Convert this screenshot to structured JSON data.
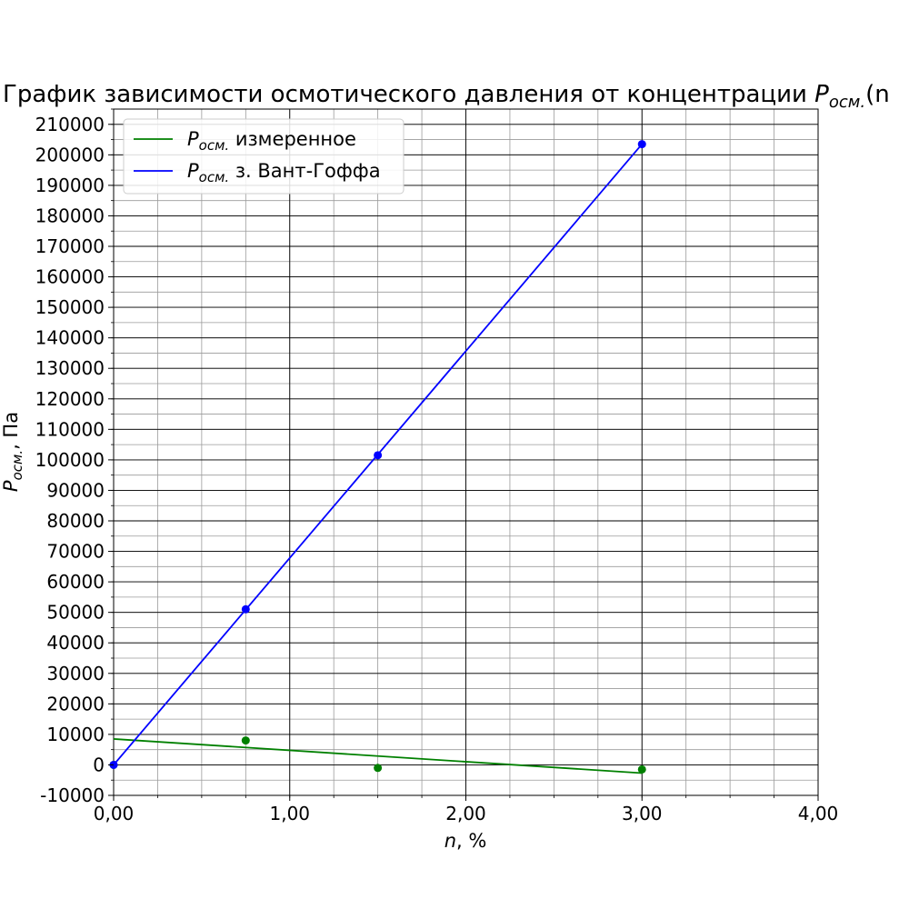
{
  "chart_data": {
    "type": "line",
    "title_main": "График зависимости осмотического давления от концентрации ",
    "title_var": "P",
    "title_sub": "осм.",
    "title_tail": "(n",
    "xlabel_var": "n",
    "xlabel_tail": ", %",
    "ylabel_var": "P",
    "ylabel_sub": "осм.",
    "ylabel_tail": ", Па",
    "xlim": [
      0,
      4
    ],
    "ylim": [
      -10000,
      215000
    ],
    "x_ticks": [
      0,
      1,
      2,
      3,
      4
    ],
    "x_tick_labels": [
      "0,00",
      "1,00",
      "2,00",
      "3,00",
      "4,00"
    ],
    "y_ticks": [
      -10000,
      0,
      10000,
      20000,
      30000,
      40000,
      50000,
      60000,
      70000,
      80000,
      90000,
      100000,
      110000,
      120000,
      130000,
      140000,
      150000,
      160000,
      170000,
      180000,
      190000,
      200000,
      210000
    ],
    "y_tick_labels": [
      "-10000",
      "0",
      "10000",
      "20000",
      "30000",
      "40000",
      "50000",
      "60000",
      "70000",
      "80000",
      "90000",
      "100000",
      "110000",
      "120000",
      "130000",
      "140000",
      "150000",
      "160000",
      "170000",
      "180000",
      "190000",
      "200000",
      "210000"
    ],
    "x_minor_step": 0.25,
    "y_minor_step": 5000,
    "grid": true,
    "legend_position": "top-left",
    "series": [
      {
        "name_var": "P",
        "name_sub": "осм.",
        "name_tail": " измеренное",
        "color": "#008000",
        "points": [
          [
            0,
            0
          ],
          [
            0.75,
            8000
          ],
          [
            1.5,
            -1000
          ],
          [
            3.0,
            -1500
          ]
        ],
        "fit": [
          [
            0,
            8500
          ],
          [
            3.0,
            -2700
          ]
        ]
      },
      {
        "name_var": "P",
        "name_sub": "осм.",
        "name_tail": " з. Вант-Гоффа",
        "color": "#0000ff",
        "points": [
          [
            0,
            0
          ],
          [
            0.75,
            51000
          ],
          [
            1.5,
            101500
          ],
          [
            3.0,
            203500
          ]
        ],
        "fit": [
          [
            0,
            0
          ],
          [
            3.0,
            203500
          ]
        ]
      }
    ]
  }
}
